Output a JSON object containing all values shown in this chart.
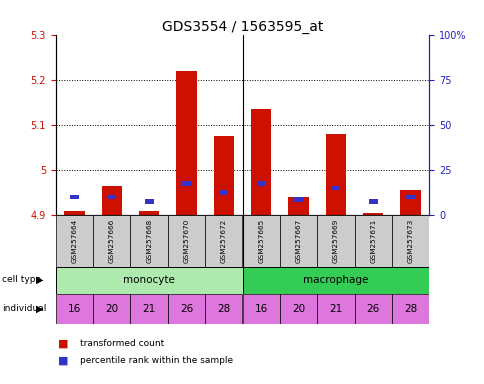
{
  "title": "GDS3554 / 1563595_at",
  "samples": [
    "GSM257664",
    "GSM257666",
    "GSM257668",
    "GSM257670",
    "GSM257672",
    "GSM257665",
    "GSM257667",
    "GSM257669",
    "GSM257671",
    "GSM257673"
  ],
  "red_values": [
    4.91,
    4.965,
    4.91,
    5.22,
    5.075,
    5.135,
    4.94,
    5.08,
    4.905,
    4.955
  ],
  "blue_values": [
    4.935,
    4.935,
    4.925,
    4.965,
    4.945,
    4.965,
    4.93,
    4.955,
    4.925,
    4.935
  ],
  "baseline": 4.9,
  "ylim_min": 4.9,
  "ylim_max": 5.3,
  "yticks_left": [
    4.9,
    5.0,
    5.1,
    5.2,
    5.3
  ],
  "ytick_labels_left": [
    "4.9",
    "5",
    "5.1",
    "5.2",
    "5.3"
  ],
  "yticks_right_vals": [
    0,
    25,
    50,
    75,
    100
  ],
  "ytick_labels_right": [
    "0",
    "25",
    "50",
    "75",
    "100%"
  ],
  "individual_labels": [
    "16",
    "20",
    "21",
    "26",
    "28",
    "16",
    "20",
    "21",
    "26",
    "28"
  ],
  "monocyte_color": "#aeeaae",
  "macrophage_color": "#33cc55",
  "individual_color": "#dd77dd",
  "bar_width": 0.55,
  "red_color": "#cc1100",
  "blue_color": "#3333cc",
  "left_axis_color": "#cc1100",
  "right_axis_color": "#2222bb",
  "title_fontsize": 10,
  "tick_fontsize": 7,
  "label_fontsize": 7
}
